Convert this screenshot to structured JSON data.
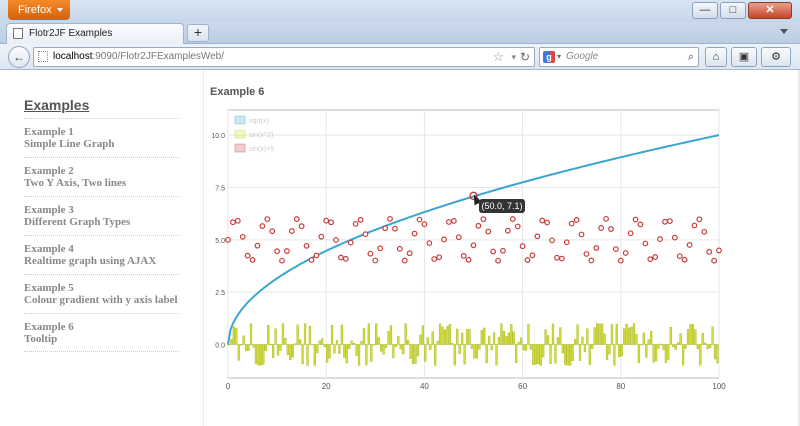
{
  "browser": {
    "app_button": "Firefox",
    "tab_title": "Flotr2JF Examples",
    "new_tab": "+",
    "url_host": "localhost",
    "url_path": ":9090/Flotr2JFExamplesWeb/",
    "search_placeholder": "Google",
    "window_controls": {
      "minimize": "—",
      "maximize": "□",
      "close": "✕"
    }
  },
  "sidebar": {
    "title": "Examples",
    "items": [
      {
        "label": "Example 1",
        "desc": "Simple Line Graph"
      },
      {
        "label": "Example 2",
        "desc": "Two Y Axis, Two lines"
      },
      {
        "label": "Example 3",
        "desc": "Different Graph Types"
      },
      {
        "label": "Example 4",
        "desc": "Realtime graph using AJAX"
      },
      {
        "label": "Example 5",
        "desc": "Colour gradient with y axis label"
      },
      {
        "label": "Example 6",
        "desc": "Tooltip"
      }
    ]
  },
  "main": {
    "heading": "Example 6",
    "tooltip": "(50.0, 7.1)"
  },
  "colors": {
    "line": "#3aa6d0",
    "points": "#c83c3c",
    "bars": "#c8d61e",
    "grid": "#e6e6e6"
  },
  "chart_data": {
    "type": "line",
    "legend_position": "top-left",
    "series": [
      {
        "name": "sqrt(x)",
        "kind": "line",
        "function": "sqrt(x)"
      },
      {
        "name": "sin(x^2)",
        "kind": "bars",
        "function": "sin(x^2)"
      },
      {
        "name": "sin(x)+5",
        "kind": "points",
        "function": "sin(x)+5"
      }
    ],
    "x_ticks": [
      "0",
      "20",
      "40",
      "60",
      "80",
      "100"
    ],
    "y_ticks": [
      "0.0",
      "2.5",
      "5.0",
      "7.5",
      "10.0"
    ],
    "xlim": [
      0,
      100
    ],
    "ylim": [
      -1.6,
      11.2
    ],
    "grid": true,
    "highlight": {
      "x": 50,
      "y": 7.1
    }
  }
}
